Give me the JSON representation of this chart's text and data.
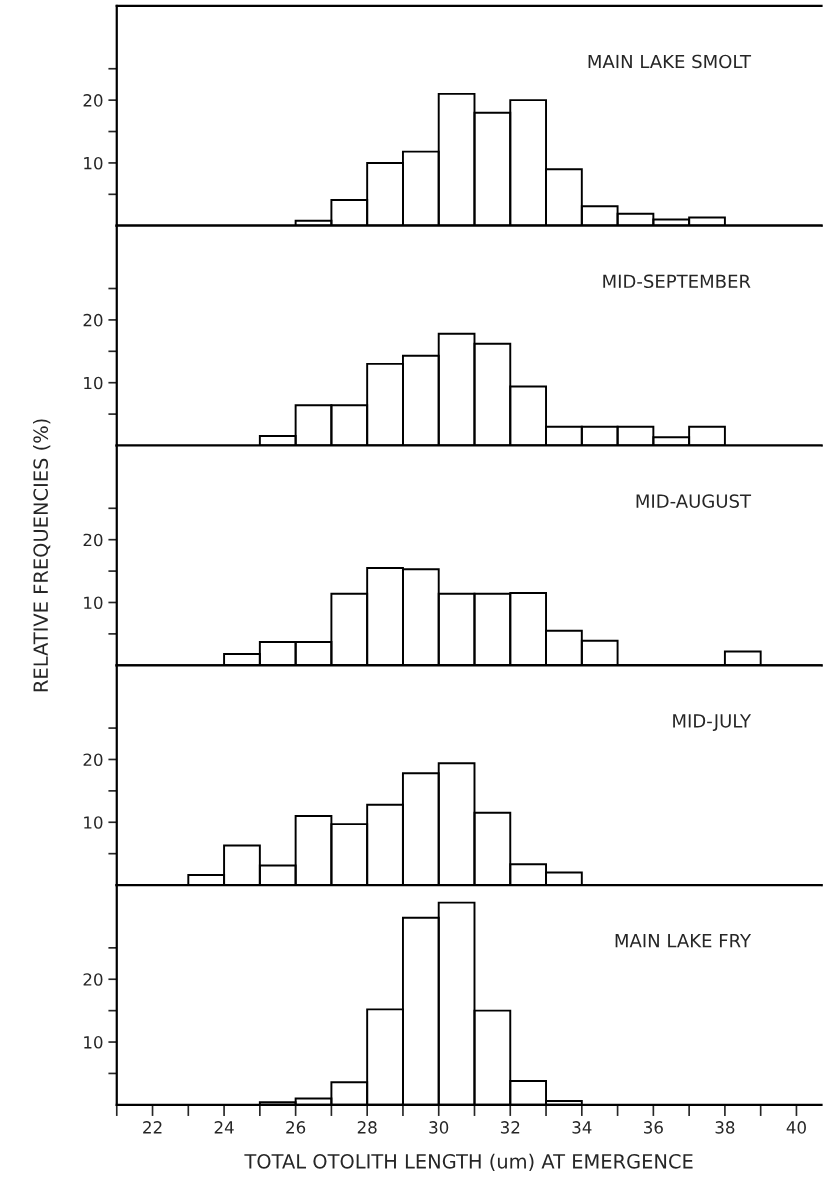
{
  "chart_data": [
    {
      "type": "histogram",
      "title": "MAIN LAKE SMOLT",
      "color": "#000000",
      "bins": [
        26,
        27,
        28,
        29,
        30,
        31,
        32,
        33,
        34,
        35,
        36,
        37,
        38
      ],
      "values": [
        0.8,
        4.1,
        10,
        11.8,
        21,
        18,
        20,
        9,
        3.1,
        1.9,
        1,
        1.3
      ],
      "xlim": [
        21,
        40.7
      ],
      "ylim": [
        0,
        35
      ],
      "yticks": [
        {
          "value": 5,
          "label": null
        },
        10,
        {
          "value": 15,
          "label": null
        },
        20,
        {
          "value": 25,
          "label": null
        }
      ],
      "tick_labels": "y"
    },
    {
      "type": "histogram",
      "title": "MID-SEPTEMBER",
      "color": "#000000",
      "bins": [
        25,
        26,
        27,
        28,
        29,
        30,
        31,
        32,
        33,
        34,
        35,
        36,
        37,
        38
      ],
      "values": [
        1.5,
        6.4,
        6.4,
        13,
        14.3,
        17.8,
        16.2,
        9.4,
        3,
        3,
        3,
        1.3,
        3
      ],
      "xlim": [
        21,
        40.7
      ],
      "ylim": [
        0,
        35
      ],
      "yticks": [
        {
          "value": 5,
          "label": null
        },
        10,
        {
          "value": 15,
          "label": null
        },
        20,
        {
          "value": 25,
          "label": null
        }
      ],
      "tick_labels": "y"
    },
    {
      "type": "histogram",
      "title": "MID-AUGUST",
      "ylabel": "RELATIVE FREQUENCIES (%)",
      "color": "#000000",
      "bins": [
        24,
        25,
        26,
        27,
        28,
        29,
        30,
        31,
        32,
        33,
        34,
        35,
        36,
        37,
        38,
        39
      ],
      "values": [
        1.8,
        3.7,
        3.7,
        11.4,
        15.5,
        15.3,
        11.4,
        11.4,
        11.5,
        5.5,
        3.9,
        0,
        0,
        0,
        2.2
      ],
      "xlim": [
        21,
        40.7
      ],
      "ylim": [
        0,
        35
      ],
      "yticks": [
        {
          "value": 5,
          "label": null
        },
        10,
        {
          "value": 15,
          "label": null
        },
        20,
        {
          "value": 25,
          "label": null
        }
      ],
      "tick_labels": "y"
    },
    {
      "type": "histogram",
      "title": "MID-JULY",
      "color": "#000000",
      "bins": [
        23,
        24,
        25,
        26,
        27,
        28,
        29,
        30,
        31,
        32,
        33,
        34
      ],
      "values": [
        1.6,
        6.3,
        3.1,
        11,
        9.7,
        12.8,
        17.8,
        19.4,
        11.5,
        3.3,
        2
      ],
      "xlim": [
        21,
        40.7
      ],
      "ylim": [
        0,
        35
      ],
      "yticks": [
        {
          "value": 5,
          "label": null
        },
        10,
        {
          "value": 15,
          "label": null
        },
        20,
        {
          "value": 25,
          "label": null
        }
      ],
      "tick_labels": "y"
    },
    {
      "type": "histogram",
      "title": "MAIN LAKE FRY",
      "xlabel": "TOTAL OTOLITH LENGTH (um) AT EMERGENCE",
      "color": "#000000",
      "bins": [
        25,
        26,
        27,
        28,
        29,
        30,
        31,
        32,
        33,
        34
      ],
      "values": [
        0.4,
        1,
        3.6,
        15.2,
        29.8,
        32.2,
        15,
        3.8,
        0.6
      ],
      "xlim": [
        21,
        40.7
      ],
      "ylim": [
        0,
        35
      ],
      "xticks": [
        {
          "value": 21,
          "label": null
        },
        22,
        {
          "value": 23,
          "label": null
        },
        24,
        {
          "value": 25,
          "label": null
        },
        26,
        {
          "value": 27,
          "label": null
        },
        28,
        {
          "value": 29,
          "label": null
        },
        30,
        {
          "value": 31,
          "label": null
        },
        32,
        {
          "value": 33,
          "label": null
        },
        34,
        {
          "value": 35,
          "label": null
        },
        36,
        {
          "value": 37,
          "label": null
        },
        38,
        {
          "value": 39,
          "label": null
        },
        40
      ],
      "yticks": [
        {
          "value": 5,
          "label": null
        },
        10,
        {
          "value": 15,
          "label": null
        },
        20,
        {
          "value": 25,
          "label": null
        }
      ]
    }
  ]
}
